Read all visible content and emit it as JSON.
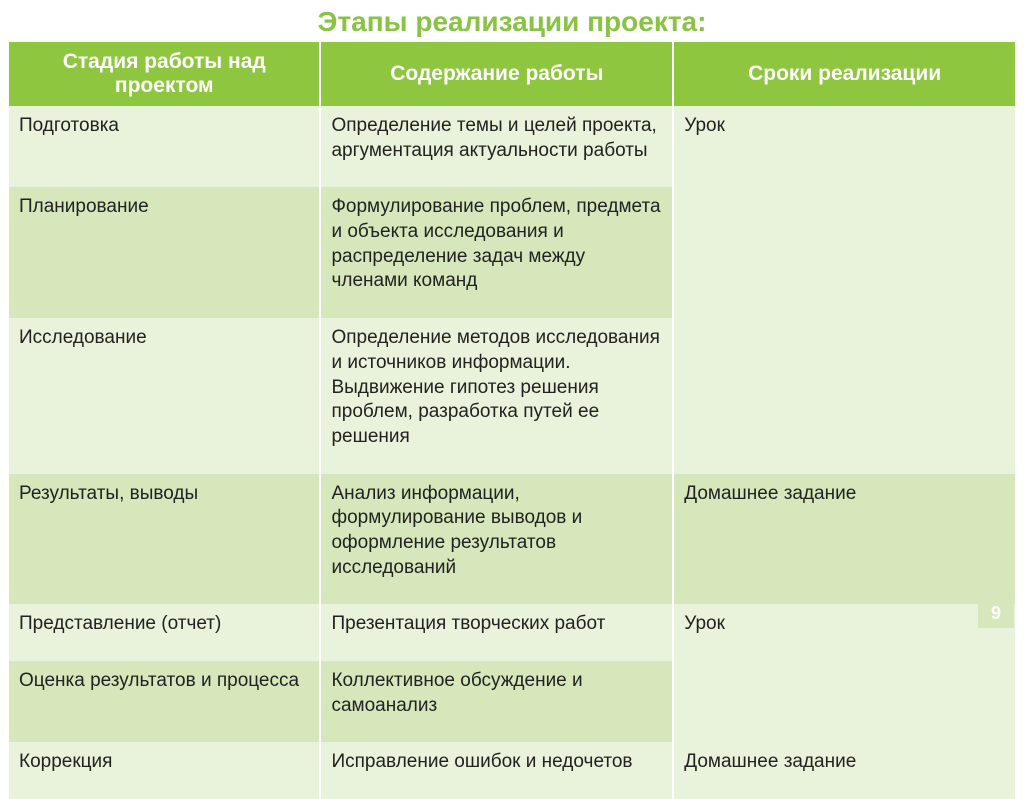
{
  "title": {
    "text": "Этапы реализации проекта:",
    "color": "#89c344",
    "fontsize": 28
  },
  "table": {
    "header_bg": "#8ec63f",
    "header_color": "#ffffff",
    "header_fontsize": 21,
    "body_fontsize": 19,
    "body_color": "#222222",
    "row_light": "#e9f2da",
    "row_dark": "#d6e8bb",
    "col_widths": [
      "31%",
      "35%",
      "34%"
    ],
    "columns": [
      "Стадия работы над проектом",
      "Содержание работы",
      "Сроки реализации"
    ],
    "groups": [
      {
        "timeline": "Урок",
        "rows": [
          {
            "stage": "Подготовка",
            "content": "Определение темы и целей проекта, аргументация актуальности работы"
          },
          {
            "stage": "Планирование",
            "content": "Формулирование проблем, предмета и объекта исследования и распределение задач между членами команд"
          },
          {
            "stage": "Исследование",
            "content": "Определение методов исследования и источников информации. Выдвижение гипотез решения проблем, разработка путей ее решения"
          }
        ]
      },
      {
        "timeline": "Домашнее задание",
        "rows": [
          {
            "stage": "Результаты, выводы",
            "content": "Анализ информации, формулирование выводов и оформление результатов исследований"
          }
        ]
      },
      {
        "timeline": "Урок",
        "rows": [
          {
            "stage": "Представление (отчет)",
            "content": "Презентация творческих работ"
          },
          {
            "stage": "Оценка результатов и процесса",
            "content": "Коллективное обсуждение и самоанализ"
          }
        ]
      },
      {
        "timeline": "Домашнее задание",
        "rows": [
          {
            "stage": "Коррекция",
            "content": "Исправление ошибок и недочетов"
          }
        ]
      }
    ]
  },
  "page_badge": {
    "number": "9",
    "bg": "#d6e8bb",
    "color": "#ffffff",
    "fontsize": 18
  }
}
